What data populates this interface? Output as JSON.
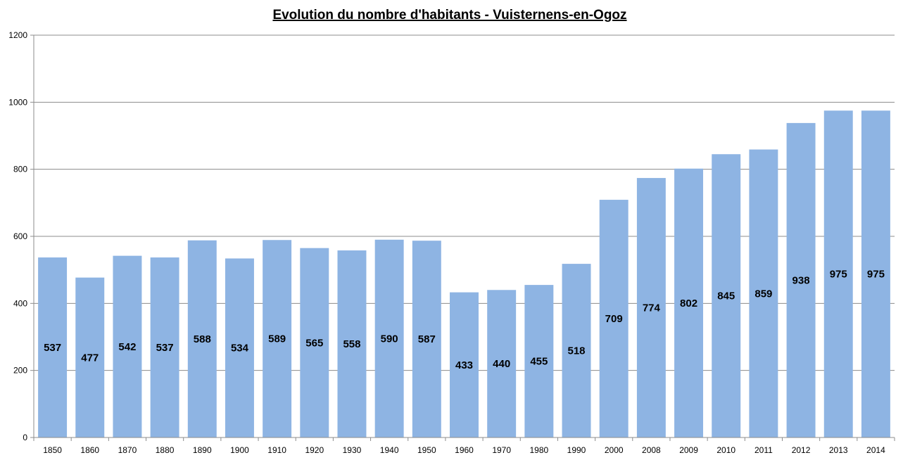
{
  "chart_data": {
    "type": "bar",
    "title": "Evolution du nombre d'habitants - Vuisternens-en-Ogoz",
    "xlabel": "",
    "ylabel": "",
    "ylim": [
      0,
      1200
    ],
    "yticks": [
      0,
      200,
      400,
      600,
      800,
      1000,
      1200
    ],
    "grid": true,
    "legend": "none",
    "bar_color": "#8EB4E3",
    "categories": [
      "1850",
      "1860",
      "1870",
      "1880",
      "1890",
      "1900",
      "1910",
      "1920",
      "1930",
      "1940",
      "1950",
      "1960",
      "1970",
      "1980",
      "1990",
      "2000",
      "2008",
      "2009",
      "2010",
      "2011",
      "2012",
      "2013",
      "2014"
    ],
    "values": [
      537,
      477,
      542,
      537,
      588,
      534,
      589,
      565,
      558,
      590,
      587,
      433,
      440,
      455,
      518,
      709,
      774,
      802,
      845,
      859,
      938,
      975,
      975
    ]
  }
}
